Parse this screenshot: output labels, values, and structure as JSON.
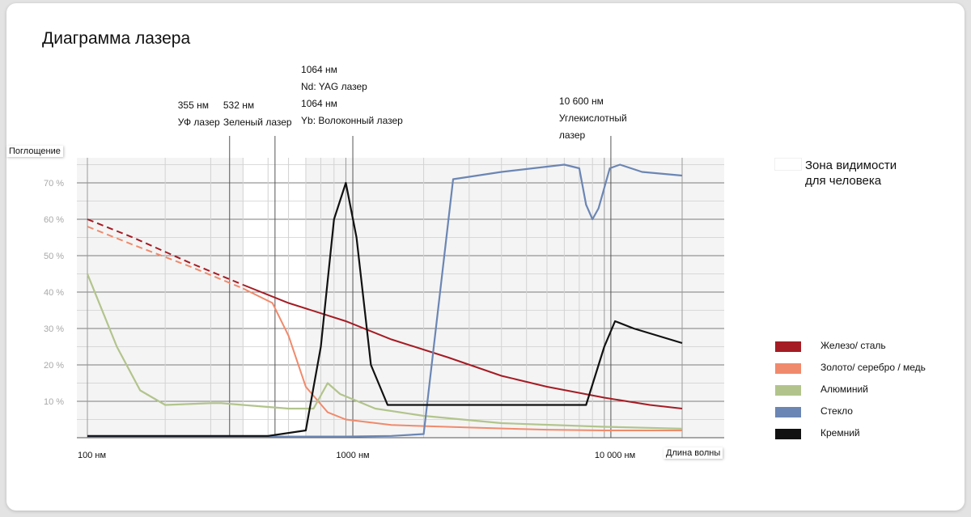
{
  "title": "Диаграмма лазера",
  "chart_data": {
    "type": "line",
    "title": "Диаграмма лазера",
    "xlabel": "Длина волны",
    "ylabel": "Поглощение",
    "x_scale": "log",
    "x_unit": "нм",
    "xlim": [
      100,
      20000
    ],
    "ylim": [
      0,
      0.78
    ],
    "x_ticks": [
      {
        "value": 100,
        "label": "100 нм"
      },
      {
        "value": 1000,
        "label": "1000 нм"
      },
      {
        "value": 10000,
        "label": "10 000 нм"
      }
    ],
    "y_ticks": [
      {
        "value": 0.1,
        "label": "10 %"
      },
      {
        "value": 0.2,
        "label": "20 %"
      },
      {
        "value": 0.3,
        "label": "30 %"
      },
      {
        "value": 0.4,
        "label": "40 %"
      },
      {
        "value": 0.5,
        "label": "50 %"
      },
      {
        "value": 0.6,
        "label": "60 %"
      },
      {
        "value": 0.7,
        "label": "70 %"
      }
    ],
    "grid": true,
    "visible_zone": {
      "x": [
        400,
        700
      ],
      "label": "Зона видимости\nдля человека"
    },
    "lasers": [
      {
        "x": 355,
        "lines": [
          "355 нм",
          "УФ лазер"
        ]
      },
      {
        "x": 532,
        "lines": [
          "532 нм",
          "Зеленый лазер"
        ]
      },
      {
        "x": 1064,
        "lines": [
          "1064 нм",
          "Nd: YAG лазер",
          "1064 нм",
          "Yb: Волоконный лазер"
        ]
      },
      {
        "x": 10600,
        "lines": [
          "10 600 нм",
          "Углекислотный",
          "лазер"
        ]
      }
    ],
    "series": [
      {
        "name": "Железо/ сталь",
        "color": "#a51c24",
        "dashed_until": 400,
        "points": [
          [
            100,
            0.6
          ],
          [
            150,
            0.55
          ],
          [
            250,
            0.48
          ],
          [
            400,
            0.42
          ],
          [
            600,
            0.37
          ],
          [
            1000,
            0.32
          ],
          [
            1500,
            0.27
          ],
          [
            2500,
            0.22
          ],
          [
            4000,
            0.17
          ],
          [
            6000,
            0.14
          ],
          [
            10000,
            0.11
          ],
          [
            15000,
            0.09
          ],
          [
            20000,
            0.08
          ]
        ]
      },
      {
        "name": "Золото/ серебро / медь",
        "color": "#f08a6c",
        "dashed_until": 400,
        "points": [
          [
            100,
            0.58
          ],
          [
            150,
            0.53
          ],
          [
            250,
            0.47
          ],
          [
            400,
            0.41
          ],
          [
            520,
            0.37
          ],
          [
            600,
            0.28
          ],
          [
            700,
            0.14
          ],
          [
            850,
            0.07
          ],
          [
            1000,
            0.05
          ],
          [
            1500,
            0.035
          ],
          [
            3000,
            0.028
          ],
          [
            6000,
            0.022
          ],
          [
            10000,
            0.02
          ],
          [
            20000,
            0.02
          ]
        ]
      },
      {
        "name": "Алюминий",
        "color": "#b2c48c",
        "points": [
          [
            100,
            0.45
          ],
          [
            130,
            0.25
          ],
          [
            160,
            0.13
          ],
          [
            200,
            0.09
          ],
          [
            300,
            0.095
          ],
          [
            330,
            0.095
          ],
          [
            400,
            0.09
          ],
          [
            600,
            0.08
          ],
          [
            750,
            0.08
          ],
          [
            850,
            0.15
          ],
          [
            950,
            0.12
          ],
          [
            1300,
            0.08
          ],
          [
            2000,
            0.06
          ],
          [
            4000,
            0.04
          ],
          [
            10000,
            0.03
          ],
          [
            20000,
            0.025
          ]
        ]
      },
      {
        "name": "Стекло",
        "color": "#6b86b4",
        "points": [
          [
            100,
            0.003
          ],
          [
            1000,
            0.003
          ],
          [
            1500,
            0.005
          ],
          [
            2000,
            0.01
          ],
          [
            2600,
            0.71
          ],
          [
            4000,
            0.73
          ],
          [
            7000,
            0.75
          ],
          [
            8000,
            0.74
          ],
          [
            8500,
            0.64
          ],
          [
            9000,
            0.6
          ],
          [
            9500,
            0.63
          ],
          [
            10500,
            0.74
          ],
          [
            11500,
            0.75
          ],
          [
            14000,
            0.73
          ],
          [
            20000,
            0.72
          ]
        ]
      },
      {
        "name": "Кремний",
        "color": "#111111",
        "points": [
          [
            100,
            0.005
          ],
          [
            500,
            0.005
          ],
          [
            700,
            0.02
          ],
          [
            800,
            0.25
          ],
          [
            900,
            0.6
          ],
          [
            1000,
            0.7
          ],
          [
            1100,
            0.55
          ],
          [
            1250,
            0.2
          ],
          [
            1450,
            0.09
          ],
          [
            2000,
            0.09
          ],
          [
            5000,
            0.09
          ],
          [
            8500,
            0.09
          ],
          [
            10000,
            0.25
          ],
          [
            11000,
            0.32
          ],
          [
            13000,
            0.3
          ],
          [
            20000,
            0.26
          ]
        ]
      }
    ],
    "legend_position": "right"
  }
}
